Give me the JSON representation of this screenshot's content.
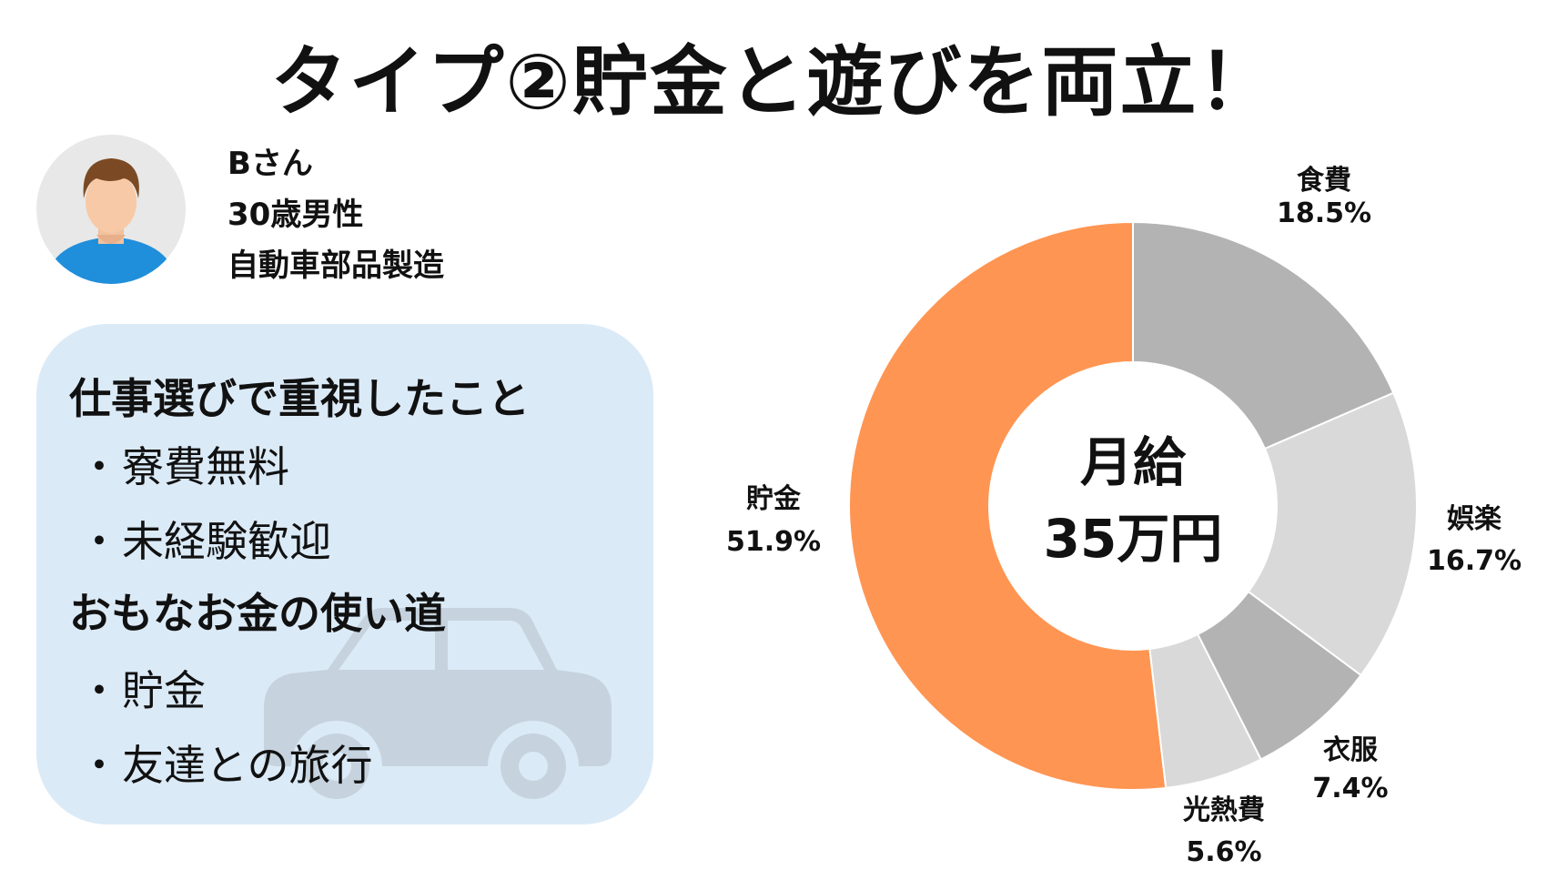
{
  "title": "タイプ②貯金と遊びを両立！",
  "profile": {
    "name": "Bさん",
    "age": "30歳男性",
    "job": "自動車部品製造"
  },
  "panel": {
    "heading1": "仕事選びで重視したこと",
    "items1": [
      "寮費無料",
      "未経験歓迎"
    ],
    "heading2": "おもなお金の使い道",
    "items2": [
      "貯金",
      "友達との旅行"
    ],
    "bullet": "・"
  },
  "chart_data": {
    "type": "pie",
    "variant": "donut",
    "center_label": [
      "月給",
      "35万円"
    ],
    "categories": [
      "食費",
      "娯楽",
      "衣服",
      "光熱費",
      "貯金"
    ],
    "values": [
      18.5,
      16.7,
      7.4,
      5.6,
      51.9
    ],
    "value_labels": [
      "18.5%",
      "16.7%",
      "7.4%",
      "5.6%",
      "51.9%"
    ],
    "colors": [
      "#b3b3b3",
      "#d9d9d9",
      "#b3b3b3",
      "#d9d9d9",
      "#ff9552"
    ]
  },
  "colors": {
    "panel_bg": "#dbeaf7",
    "accent": "#ff9552",
    "avatar_shirt": "#1f8fdc"
  }
}
